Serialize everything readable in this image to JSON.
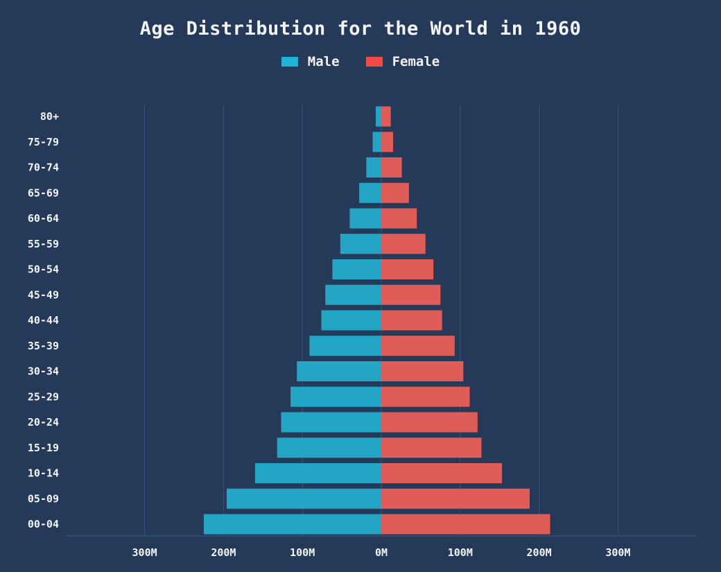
{
  "chart_data": {
    "type": "bar",
    "orientation": "horizontal",
    "title": "Age Distribution for the World in 1960",
    "categories": [
      "80+",
      "75-79",
      "70-74",
      "65-69",
      "60-64",
      "55-59",
      "50-54",
      "45-49",
      "40-44",
      "35-39",
      "30-34",
      "25-29",
      "20-24",
      "15-19",
      "10-14",
      "05-09",
      "00-04"
    ],
    "series": [
      {
        "name": "Male",
        "color": "#23a5c5",
        "legend_color": "#1cb4d8",
        "values": [
          7,
          11,
          19,
          28,
          40,
          52,
          62,
          71,
          76,
          91,
          107,
          115,
          127,
          132,
          160,
          196,
          225
        ]
      },
      {
        "name": "Female",
        "color": "#e05c58",
        "legend_color": "#f24a45",
        "values": [
          12,
          15,
          26,
          35,
          45,
          56,
          66,
          75,
          77,
          93,
          104,
          112,
          122,
          127,
          153,
          188,
          214
        ]
      }
    ],
    "xlim": [
      -400,
      400
    ],
    "xticks": [
      -300,
      -200,
      -100,
      0,
      100,
      200,
      300
    ],
    "xtick_labels": [
      "300M",
      "200M",
      "100M",
      "0M",
      "100M",
      "200M",
      "300M"
    ],
    "grid": true,
    "legend_position": "top-center"
  }
}
